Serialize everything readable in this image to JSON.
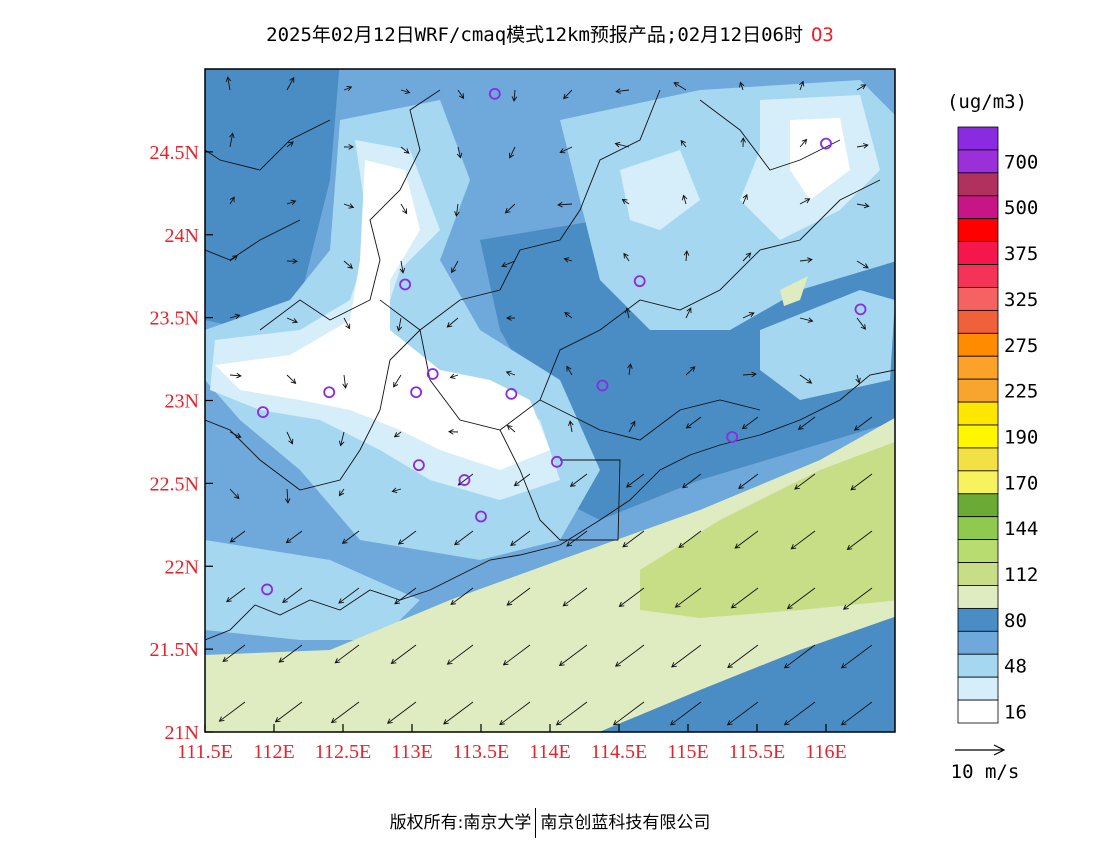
{
  "title": {
    "text": "2025年02月12日WRF/cmaq模式12km预报产品;02月12日06时",
    "pollutant": "O3"
  },
  "footer": {
    "left": "版权所有:南京大学",
    "right": "南京创蓝科技有限公司"
  },
  "chart_data": {
    "type": "map-contour",
    "xlim": [
      111.5,
      116.5
    ],
    "ylim": [
      21.0,
      25.0
    ],
    "x_ticks": [
      111.5,
      112,
      112.5,
      113,
      113.5,
      114,
      114.5,
      115,
      115.5,
      116
    ],
    "x_tick_labels": [
      "111.5E",
      "112E",
      "112.5E",
      "113E",
      "113.5E",
      "114E",
      "114.5E",
      "115E",
      "115.5E",
      "116E"
    ],
    "y_ticks": [
      21,
      21.5,
      22,
      22.5,
      23,
      23.5,
      24,
      24.5
    ],
    "y_tick_labels": [
      "21N",
      "21.5N",
      "22N",
      "22.5N",
      "23N",
      "23.5N",
      "24N",
      "24.5N"
    ],
    "legend": {
      "unit": "(ug/m3)",
      "levels": [
        {
          "color": "#8a2be2",
          "label": ""
        },
        {
          "color": "#9b30d9",
          "label": "700"
        },
        {
          "color": "#b0305e",
          "label": ""
        },
        {
          "color": "#c71585",
          "label": "500"
        },
        {
          "color": "#ff0000",
          "label": ""
        },
        {
          "color": "#f5164b",
          "label": "375"
        },
        {
          "color": "#f53358",
          "label": ""
        },
        {
          "color": "#f46262",
          "label": "325"
        },
        {
          "color": "#f0603a",
          "label": ""
        },
        {
          "color": "#ff8c00",
          "label": "275"
        },
        {
          "color": "#fca22a",
          "label": ""
        },
        {
          "color": "#f8a530",
          "label": "225"
        },
        {
          "color": "#ffe600",
          "label": ""
        },
        {
          "color": "#fff700",
          "label": "190"
        },
        {
          "color": "#f2e045",
          "label": ""
        },
        {
          "color": "#f7f25e",
          "label": "170"
        },
        {
          "color": "#6aaa35",
          "label": ""
        },
        {
          "color": "#8fca4e",
          "label": "144"
        },
        {
          "color": "#b8dc70",
          "label": ""
        },
        {
          "color": "#c7de86",
          "label": "112"
        },
        {
          "color": "#dfebc0",
          "label": ""
        },
        {
          "color": "#4a8dc4",
          "label": "80"
        },
        {
          "color": "#6fa8da",
          "label": ""
        },
        {
          "color": "#a6d7f1",
          "label": "48"
        },
        {
          "color": "#d6eefa",
          "label": ""
        },
        {
          "color": "#ffffff",
          "label": "16"
        }
      ]
    },
    "wind_reference": {
      "label": "10 m/s"
    },
    "stations": [
      {
        "lon": 113.6,
        "lat": 24.85
      },
      {
        "lon": 116.0,
        "lat": 24.55
      },
      {
        "lon": 112.95,
        "lat": 23.7
      },
      {
        "lon": 114.65,
        "lat": 23.72
      },
      {
        "lon": 116.25,
        "lat": 23.55
      },
      {
        "lon": 112.4,
        "lat": 23.05
      },
      {
        "lon": 113.03,
        "lat": 23.05
      },
      {
        "lon": 113.15,
        "lat": 23.16
      },
      {
        "lon": 113.72,
        "lat": 23.04
      },
      {
        "lon": 114.38,
        "lat": 23.09
      },
      {
        "lon": 111.92,
        "lat": 22.93
      },
      {
        "lon": 115.32,
        "lat": 22.78
      },
      {
        "lon": 113.05,
        "lat": 22.61
      },
      {
        "lon": 113.38,
        "lat": 22.52
      },
      {
        "lon": 114.05,
        "lat": 22.63
      },
      {
        "lon": 113.5,
        "lat": 22.3
      },
      {
        "lon": 111.95,
        "lat": 21.86
      }
    ]
  }
}
